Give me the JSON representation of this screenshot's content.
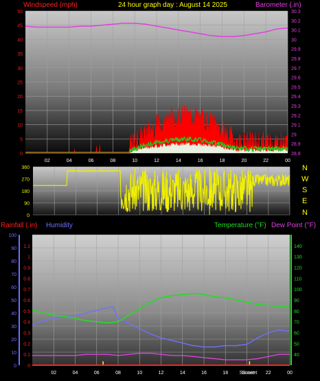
{
  "header": {
    "left_title": "Windspeed (mph)",
    "center_title": "24 hour graph day : August 14 2025",
    "right_title": "Barometer (.in)"
  },
  "colors": {
    "windspeed": "#ff1a1a",
    "gust_fill": "#ff0000",
    "avg_wind": "#22cc22",
    "barometer": "#e040e0",
    "direction": "#f0f000",
    "rainfall": "#ff2020",
    "humidity": "#7070ff",
    "temperature": "#22dd22",
    "dewpoint": "#e040e0",
    "sunrise_sunset": "#ffff00"
  },
  "compass": [
    "N",
    "W",
    "S",
    "E",
    "N"
  ],
  "labels": {
    "rainfall": "Rainfall (.in)",
    "humidity": "Humidity",
    "temperature": "Temperature (°F)",
    "dewpoint": "Dew Point (°F)",
    "sunset": "Sunset"
  },
  "chart_data": [
    {
      "type": "line",
      "title": "24 hour graph day : August 14 2025",
      "x_ticks": [
        "02",
        "04",
        "06",
        "08",
        "10",
        "12",
        "14",
        "16",
        "18",
        "20",
        "22",
        "00"
      ],
      "y_left": {
        "label": "Windspeed (mph)",
        "range": [
          0,
          50
        ],
        "ticks": [
          0,
          5,
          10,
          15,
          20,
          25,
          30,
          35,
          40,
          45,
          50
        ]
      },
      "y_right": {
        "label": "Barometer (.in)",
        "range": [
          28.8,
          30.3
        ],
        "ticks": [
          "28.8",
          "28.9",
          "29",
          "29.1",
          "29.2",
          "29.3",
          "29.4",
          "29.5",
          "29.6",
          "29.7",
          "29.8",
          "29.9",
          "30",
          "30.1",
          "30.2",
          "30.3"
        ]
      },
      "series": [
        {
          "name": "Barometer (.in)",
          "axis": "right",
          "x": [
            0,
            1,
            2,
            3,
            4,
            5,
            6,
            7,
            8,
            9,
            10,
            11,
            12,
            13,
            14,
            15,
            16,
            17,
            18,
            19,
            20,
            21,
            22,
            23,
            24
          ],
          "values": [
            30.14,
            30.13,
            30.13,
            30.13,
            30.13,
            30.14,
            30.14,
            30.15,
            30.16,
            30.17,
            30.17,
            30.16,
            30.14,
            30.12,
            30.1,
            30.08,
            30.06,
            30.04,
            30.03,
            30.03,
            30.04,
            30.06,
            30.08,
            30.11,
            30.12
          ]
        }
      ]
    },
    {
      "type": "line",
      "title": "",
      "y_ticks": [
        0,
        90,
        180,
        270,
        360
      ],
      "series": [
        {
          "name": "",
          "x": [
            0,
            1,
            2,
            3,
            3.2,
            3.4,
            4,
            5,
            6,
            7,
            8,
            8.3,
            9,
            9.5,
            10,
            11,
            12,
            13,
            14,
            15,
            16,
            17,
            18,
            19,
            20,
            21,
            22,
            23,
            24
          ],
          "values": [
            220,
            220,
            220,
            220,
            325,
            220,
            330,
            330,
            330,
            330,
            320,
            30,
            90,
            200,
            40,
            130,
            280,
            60,
            150,
            260,
            70,
            200,
            120,
            300,
            230,
            240,
            230,
            300,
            260
          ]
        }
      ]
    },
    {
      "type": "line",
      "title": "",
      "x_ticks": [
        "02",
        "04",
        "06",
        "08",
        "10",
        "12",
        "14",
        "16",
        "18",
        "Sunset",
        "22",
        "00"
      ],
      "y_left_humidity": {
        "label": "Humidity",
        "range": [
          0,
          100
        ],
        "ticks": [
          0,
          10,
          20,
          30,
          40,
          50,
          60,
          70,
          80,
          90,
          100
        ]
      },
      "y_left_rain": {
        "label": "Rainfall (.in)",
        "range": [
          0,
          1.2
        ],
        "ticks": [
          "0",
          "0.1",
          "0.2",
          "0.3",
          "0.4",
          "0.5",
          "0.6",
          "0.7",
          "0.8",
          "0.9",
          "1",
          "1.1"
        ]
      },
      "y_right": {
        "label": "Temperature (°F)",
        "range": [
          30,
          150
        ],
        "ticks": [
          40,
          50,
          60,
          70,
          80,
          90,
          100,
          110,
          120,
          130,
          140
        ]
      },
      "series": [
        {
          "name": "Temperature (°F)",
          "axis": "right",
          "x": [
            0,
            1,
            2,
            3,
            4,
            5,
            6,
            7,
            8,
            9,
            10,
            11,
            12,
            13,
            14,
            15,
            16,
            17,
            18,
            19,
            20,
            21,
            22,
            23,
            24
          ],
          "values": [
            81,
            78,
            76,
            75,
            73,
            71,
            70,
            69,
            70,
            76,
            82,
            88,
            92,
            94,
            95,
            96,
            95,
            93,
            92,
            90,
            88,
            86,
            85,
            84,
            84
          ]
        },
        {
          "name": "Humidity",
          "axis": "humidity",
          "x": [
            0,
            1,
            2,
            3,
            4,
            5,
            6,
            7,
            7.5,
            8,
            9,
            10,
            11,
            12,
            13,
            14,
            15,
            16,
            17,
            18,
            19,
            20,
            21,
            22,
            23,
            24
          ],
          "values": [
            31,
            34,
            36,
            37,
            38,
            40,
            42,
            44,
            45,
            36,
            32,
            28,
            24,
            21,
            19,
            17,
            15,
            14,
            14,
            15,
            15,
            16,
            21,
            25,
            27,
            26
          ]
        },
        {
          "name": "Dew Point (°F)",
          "axis": "right",
          "x": [
            0,
            1,
            2,
            3,
            4,
            5,
            6,
            7,
            8,
            9,
            10,
            11,
            12,
            13,
            14,
            15,
            16,
            17,
            18,
            19,
            20,
            21,
            22,
            23,
            24
          ],
          "values": [
            39,
            39,
            39,
            39,
            39,
            40,
            40,
            40,
            39,
            40,
            41,
            41,
            40,
            39,
            39,
            38,
            37,
            36,
            35,
            35,
            35,
            36,
            38,
            40,
            40
          ]
        },
        {
          "name": "Rainfall (.in)",
          "axis": "rain",
          "x": [
            0,
            24
          ],
          "values": [
            0,
            0
          ]
        }
      ],
      "sunrise_hour": 6.6,
      "sunset_hour": 20.25
    }
  ]
}
